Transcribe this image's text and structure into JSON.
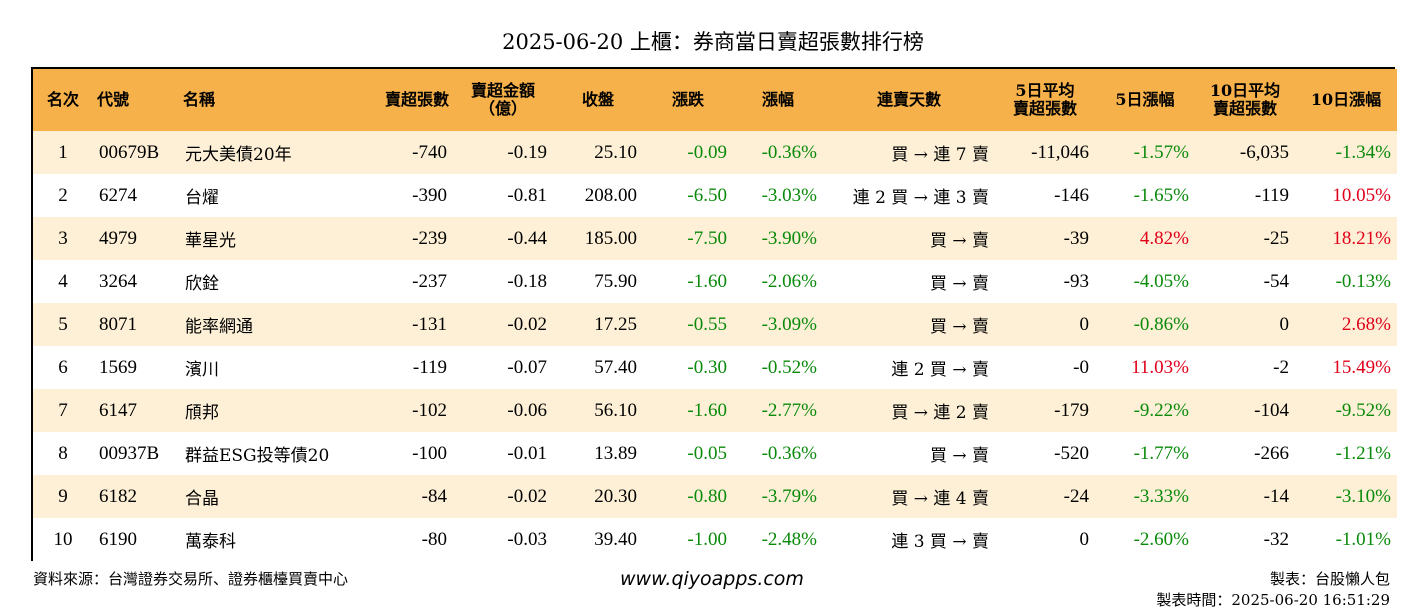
{
  "title": "2025-06-20 上櫃：券商當日賣超張數排行榜",
  "headers": {
    "rank": "名次",
    "code": "代號",
    "name": "名稱",
    "net_sell_lots": "賣超張數",
    "net_sell_amount_line1": "賣超金額",
    "net_sell_amount_line2": "（億）",
    "close": "收盤",
    "change": "漲跌",
    "change_pct": "漲幅",
    "streak": "連賣天數",
    "avg5_line1": "5日平均",
    "avg5_line2": "賣超張數",
    "chg5": "5日漲幅",
    "avg10_line1": "10日平均",
    "avg10_line2": "賣超張數",
    "chg10": "10日漲幅"
  },
  "rows": [
    {
      "rank": "1",
      "code": "00679B",
      "name": "元大美債20年",
      "lots": "-740",
      "amount": "-0.19",
      "close": "25.10",
      "change": "-0.09",
      "pct": "-0.36%",
      "streak": "買 → 連 7 賣",
      "avg5": "-11,046",
      "chg5": "-1.57%",
      "avg10": "-6,035",
      "chg10": "-1.34%"
    },
    {
      "rank": "2",
      "code": "6274",
      "name": "台燿",
      "lots": "-390",
      "amount": "-0.81",
      "close": "208.00",
      "change": "-6.50",
      "pct": "-3.03%",
      "streak": "連 2 買 → 連 3 賣",
      "avg5": "-146",
      "chg5": "-1.65%",
      "avg10": "-119",
      "chg10": "10.05%"
    },
    {
      "rank": "3",
      "code": "4979",
      "name": "華星光",
      "lots": "-239",
      "amount": "-0.44",
      "close": "185.00",
      "change": "-7.50",
      "pct": "-3.90%",
      "streak": "買 → 賣",
      "avg5": "-39",
      "chg5": "4.82%",
      "avg10": "-25",
      "chg10": "18.21%"
    },
    {
      "rank": "4",
      "code": "3264",
      "name": "欣銓",
      "lots": "-237",
      "amount": "-0.18",
      "close": "75.90",
      "change": "-1.60",
      "pct": "-2.06%",
      "streak": "買 → 賣",
      "avg5": "-93",
      "chg5": "-4.05%",
      "avg10": "-54",
      "chg10": "-0.13%"
    },
    {
      "rank": "5",
      "code": "8071",
      "name": "能率網通",
      "lots": "-131",
      "amount": "-0.02",
      "close": "17.25",
      "change": "-0.55",
      "pct": "-3.09%",
      "streak": "買 → 賣",
      "avg5": "0",
      "chg5": "-0.86%",
      "avg10": "0",
      "chg10": "2.68%"
    },
    {
      "rank": "6",
      "code": "1569",
      "name": "濱川",
      "lots": "-119",
      "amount": "-0.07",
      "close": "57.40",
      "change": "-0.30",
      "pct": "-0.52%",
      "streak": "連 2 買 → 賣",
      "avg5": "-0",
      "chg5": "11.03%",
      "avg10": "-2",
      "chg10": "15.49%"
    },
    {
      "rank": "7",
      "code": "6147",
      "name": "頎邦",
      "lots": "-102",
      "amount": "-0.06",
      "close": "56.10",
      "change": "-1.60",
      "pct": "-2.77%",
      "streak": "買 → 連 2 賣",
      "avg5": "-179",
      "chg5": "-9.22%",
      "avg10": "-104",
      "chg10": "-9.52%"
    },
    {
      "rank": "8",
      "code": "00937B",
      "name": "群益ESG投等債20",
      "lots": "-100",
      "amount": "-0.01",
      "close": "13.89",
      "change": "-0.05",
      "pct": "-0.36%",
      "streak": "買 → 賣",
      "avg5": "-520",
      "chg5": "-1.77%",
      "avg10": "-266",
      "chg10": "-1.21%"
    },
    {
      "rank": "9",
      "code": "6182",
      "name": "合晶",
      "lots": "-84",
      "amount": "-0.02",
      "close": "20.30",
      "change": "-0.80",
      "pct": "-3.79%",
      "streak": "買 → 連 4 賣",
      "avg5": "-24",
      "chg5": "-3.33%",
      "avg10": "-14",
      "chg10": "-3.10%"
    },
    {
      "rank": "10",
      "code": "6190",
      "name": "萬泰科",
      "lots": "-80",
      "amount": "-0.03",
      "close": "39.40",
      "change": "-1.00",
      "pct": "-2.48%",
      "streak": "連 3 買 → 賣",
      "avg5": "0",
      "chg5": "-2.60%",
      "avg10": "-32",
      "chg10": "-1.01%"
    }
  ],
  "footer": {
    "source": "資料來源：台灣證券交易所、證券櫃檯買賣中心",
    "website": "www.qiyoapps.com",
    "maker": "製表：台股懶人包",
    "made_time": "製表時間：2025-06-20 16:51:29"
  },
  "colors": {
    "header_bg": "#f7b14a",
    "row_alt_bg": "#fdf0d6",
    "negative": "#0a8a0a",
    "positive": "#e0001a"
  }
}
